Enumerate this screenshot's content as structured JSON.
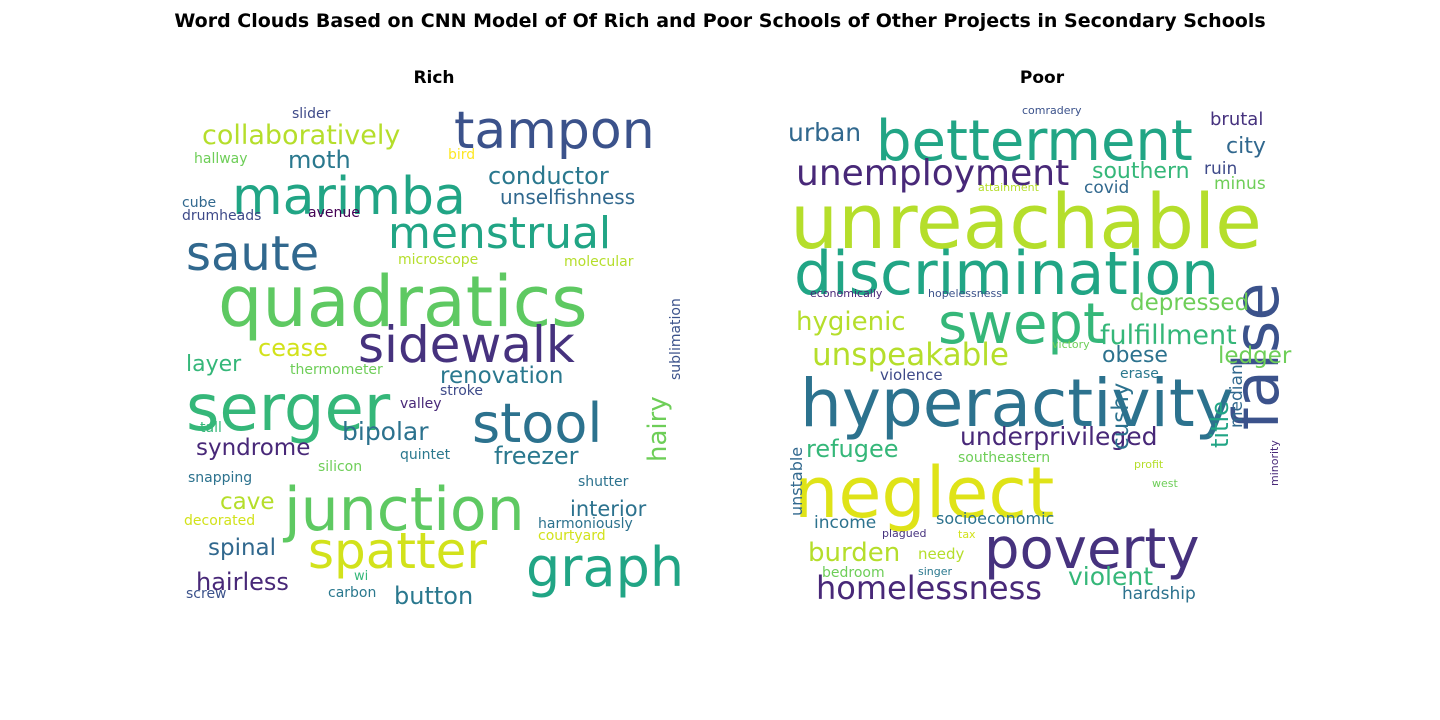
{
  "figure": {
    "title": "Word Clouds Based on CNN Model of Of Rich and Poor Schools of Other Projects in Secondary Schools"
  },
  "panels": [
    {
      "title": "Rich",
      "words": [
        {
          "text": "quadratics",
          "color": "#5ec962"
        },
        {
          "text": "serger",
          "color": "#35b779"
        },
        {
          "text": "junction",
          "color": "#5ec962"
        },
        {
          "text": "marimba",
          "color": "#21a585"
        },
        {
          "text": "tampon",
          "color": "#3b528b"
        },
        {
          "text": "sidewalk",
          "color": "#46327e"
        },
        {
          "text": "stool",
          "color": "#2c728e"
        },
        {
          "text": "spatter",
          "color": "#d2e21b"
        },
        {
          "text": "graph",
          "color": "#21a585"
        },
        {
          "text": "saute",
          "color": "#31688e"
        },
        {
          "text": "menstrual",
          "color": "#21a585"
        },
        {
          "text": "collaboratively",
          "color": "#b5de2b"
        },
        {
          "text": "conductor",
          "color": "#2a788e"
        },
        {
          "text": "unselfishness",
          "color": "#31688e"
        },
        {
          "text": "moth",
          "color": "#2a788e"
        },
        {
          "text": "renovation",
          "color": "#2a788e"
        },
        {
          "text": "bipolar",
          "color": "#2c728e"
        },
        {
          "text": "syndrome",
          "color": "#482878"
        },
        {
          "text": "freezer",
          "color": "#2a788e"
        },
        {
          "text": "hairy",
          "color": "#6ece58"
        },
        {
          "text": "cease",
          "color": "#d2e21b"
        },
        {
          "text": "layer",
          "color": "#35b779"
        },
        {
          "text": "cave",
          "color": "#b5de2b"
        },
        {
          "text": "interior",
          "color": "#2c728e"
        },
        {
          "text": "spinal",
          "color": "#31688e"
        },
        {
          "text": "hairless",
          "color": "#482878"
        },
        {
          "text": "button",
          "color": "#2a788e"
        },
        {
          "text": "slider",
          "color": "#3e4a89"
        },
        {
          "text": "hallway",
          "color": "#6ece58"
        },
        {
          "text": "bird",
          "color": "#fde725"
        },
        {
          "text": "cube",
          "color": "#31688e"
        },
        {
          "text": "drumheads",
          "color": "#3e4a89"
        },
        {
          "text": "avenue",
          "color": "#440154"
        },
        {
          "text": "microscope",
          "color": "#b5de2b"
        },
        {
          "text": "molecular",
          "color": "#b5de2b"
        },
        {
          "text": "sublimation",
          "color": "#3b528b"
        },
        {
          "text": "thermometer",
          "color": "#6ece58"
        },
        {
          "text": "stroke",
          "color": "#3e4a89"
        },
        {
          "text": "valley",
          "color": "#482878"
        },
        {
          "text": "tall",
          "color": "#35b779"
        },
        {
          "text": "silicon",
          "color": "#6ece58"
        },
        {
          "text": "quintet",
          "color": "#2a788e"
        },
        {
          "text": "snapping",
          "color": "#2c728e"
        },
        {
          "text": "shutter",
          "color": "#2c728e"
        },
        {
          "text": "decorated",
          "color": "#d2e21b"
        },
        {
          "text": "harmoniously",
          "color": "#2c728e"
        },
        {
          "text": "courtyard",
          "color": "#d2e21b"
        },
        {
          "text": "wi",
          "color": "#35b779"
        },
        {
          "text": "screw",
          "color": "#3b528b"
        },
        {
          "text": "carbon",
          "color": "#2a788e"
        }
      ]
    },
    {
      "title": "Poor",
      "words": [
        {
          "text": "unreachable",
          "color": "#b5de2b"
        },
        {
          "text": "discrimination",
          "color": "#21a585"
        },
        {
          "text": "hyperactivity",
          "color": "#2c728e"
        },
        {
          "text": "neglect",
          "color": "#dfe318"
        },
        {
          "text": "betterment",
          "color": "#21a585"
        },
        {
          "text": "swept",
          "color": "#35b779"
        },
        {
          "text": "poverty",
          "color": "#46327e"
        },
        {
          "text": "false",
          "color": "#3b528b"
        },
        {
          "text": "unemployment",
          "color": "#482878"
        },
        {
          "text": "underprivileged",
          "color": "#482878"
        },
        {
          "text": "homelessness",
          "color": "#482878"
        },
        {
          "text": "unspeakable",
          "color": "#b5de2b"
        },
        {
          "text": "fulfillment",
          "color": "#35b779"
        },
        {
          "text": "hygienic",
          "color": "#b5de2b"
        },
        {
          "text": "depressed",
          "color": "#6ece58"
        },
        {
          "text": "violent",
          "color": "#35b779"
        },
        {
          "text": "burden",
          "color": "#b5de2b"
        },
        {
          "text": "refugee",
          "color": "#35b779"
        },
        {
          "text": "urban",
          "color": "#31688e"
        },
        {
          "text": "city",
          "color": "#31688e"
        },
        {
          "text": "southern",
          "color": "#35b779"
        },
        {
          "text": "obese",
          "color": "#2c728e"
        },
        {
          "text": "ledger",
          "color": "#6ece58"
        },
        {
          "text": "cushy",
          "color": "#2c728e"
        },
        {
          "text": "title",
          "color": "#21a585"
        },
        {
          "text": "brutal",
          "color": "#46327e"
        },
        {
          "text": "ruin",
          "color": "#3e4a89"
        },
        {
          "text": "minus",
          "color": "#6ece58"
        },
        {
          "text": "covid",
          "color": "#31688e"
        },
        {
          "text": "income",
          "color": "#2c728e"
        },
        {
          "text": "socioeconomic",
          "color": "#2c728e"
        },
        {
          "text": "median",
          "color": "#31688e"
        },
        {
          "text": "unstable",
          "color": "#31688e"
        },
        {
          "text": "needy",
          "color": "#b5de2b"
        },
        {
          "text": "bedroom",
          "color": "#6ece58"
        },
        {
          "text": "hardship",
          "color": "#2c728e"
        },
        {
          "text": "violence",
          "color": "#3e4a89"
        },
        {
          "text": "erase",
          "color": "#2a788e"
        },
        {
          "text": "southeastern",
          "color": "#6ece58"
        },
        {
          "text": "comradery",
          "color": "#3b528b"
        },
        {
          "text": "attainment",
          "color": "#b5de2b"
        },
        {
          "text": "economically",
          "color": "#482878"
        },
        {
          "text": "hopelessness",
          "color": "#3b528b"
        },
        {
          "text": "victory",
          "color": "#6ece58"
        },
        {
          "text": "profit",
          "color": "#b5de2b"
        },
        {
          "text": "west",
          "color": "#6ece58"
        },
        {
          "text": "minority",
          "color": "#482878"
        },
        {
          "text": "plagued",
          "color": "#46327e"
        },
        {
          "text": "tax",
          "color": "#d2e21b"
        },
        {
          "text": "singer",
          "color": "#2a788e"
        }
      ]
    }
  ]
}
